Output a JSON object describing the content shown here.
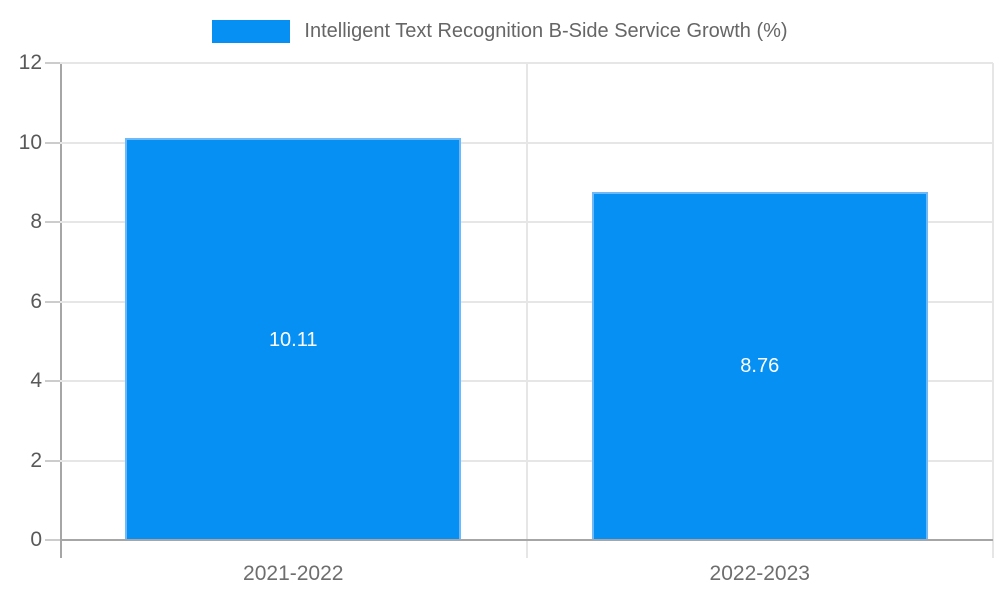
{
  "chart_data": {
    "type": "bar",
    "title": "Intelligent Text Recognition B-Side Service Growth (%)",
    "legend": {
      "label": "Intelligent Text Recognition B-Side Service Growth (%)",
      "position": "top"
    },
    "categories": [
      "2021-2022",
      "2022-2023"
    ],
    "values": [
      10.11,
      8.76
    ],
    "value_labels": [
      "10.11",
      "8.76"
    ],
    "xlabel": "",
    "ylabel": "",
    "ylim": [
      0,
      12
    ],
    "yticks": [
      0,
      2,
      4,
      6,
      8,
      10,
      12
    ],
    "grid": true,
    "colors": {
      "bar": "#0690F4",
      "bar_edge": "#6db9f9",
      "grid": "#e6e6e6",
      "axis": "#a6a6a6",
      "tick": "#cccccc",
      "legend_text": "#666666",
      "ytick_text": "#595959",
      "xtick_text": "#6e6e6e",
      "bar_label_text": "#ffffff"
    }
  }
}
